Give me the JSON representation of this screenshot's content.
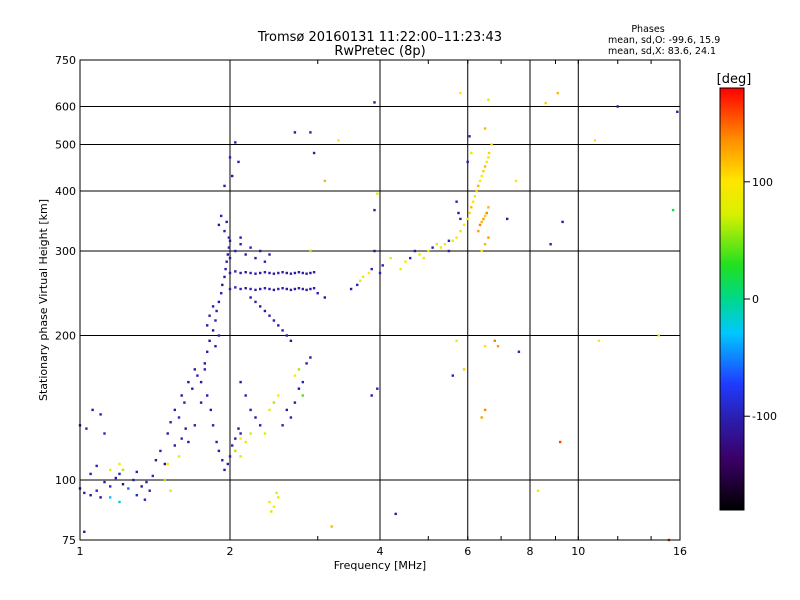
{
  "chart_data": {
    "type": "scatter",
    "title": "Tromsø 20160131 11:22:00–11:23:43",
    "subtitle": "RwPretec (8p)",
    "xlabel": "Frequency [MHz]",
    "ylabel": "Stationary phase Virtual Height [km]",
    "x_scale": "log",
    "y_scale": "log",
    "xlim": [
      1,
      16
    ],
    "ylim": [
      75,
      750
    ],
    "x_ticks": [
      1,
      2,
      4,
      6,
      8,
      10,
      16
    ],
    "x_tick_labels": [
      "1",
      "2",
      "4",
      "6",
      "8",
      "10",
      "16"
    ],
    "y_ticks": [
      75,
      100,
      200,
      300,
      400,
      500,
      600,
      750
    ],
    "y_tick_labels": [
      "75",
      "100",
      "200",
      "300",
      "400",
      "500",
      "600",
      "750"
    ],
    "grid": true,
    "colorbar": {
      "label": "[deg]",
      "range": [
        -180,
        180
      ],
      "tick_values": [
        100,
        0,
        -100
      ],
      "tick_labels": [
        "100",
        "0",
        "-100"
      ]
    },
    "stats": {
      "header": "Phases",
      "line1": "mean, sd,O: -99.6, 15.9",
      "line2": "mean, sd,X:  83.6, 24.1"
    },
    "colors": {
      "grid": "#000000",
      "o_mode_points": "#1f1fe6",
      "x_mode_points": "#e6d21f"
    },
    "points": [
      [
        1.0,
        96,
        -110
      ],
      [
        1.02,
        94,
        -100
      ],
      [
        1.05,
        93,
        -115
      ],
      [
        1.08,
        95,
        -95
      ],
      [
        1.1,
        92,
        -120
      ],
      [
        1.12,
        99,
        -105
      ],
      [
        1.15,
        97,
        -90
      ],
      [
        1.18,
        101,
        -110
      ],
      [
        1.2,
        103,
        -100
      ],
      [
        1.22,
        98,
        -120
      ],
      [
        1.25,
        96,
        -60
      ],
      [
        1.28,
        100,
        -110
      ],
      [
        1.3,
        104,
        -100
      ],
      [
        1.33,
        97,
        -115
      ],
      [
        1.36,
        99,
        -105
      ],
      [
        1.38,
        95,
        -100
      ],
      [
        1.4,
        102,
        -90
      ],
      [
        1.42,
        110,
        -110
      ],
      [
        1.45,
        115,
        -100
      ],
      [
        1.48,
        108,
        -120
      ],
      [
        1.0,
        130,
        -105
      ],
      [
        1.03,
        128,
        -100
      ],
      [
        1.06,
        140,
        -110
      ],
      [
        1.1,
        137,
        -100
      ],
      [
        1.12,
        125,
        -95
      ],
      [
        1.05,
        103,
        -110
      ],
      [
        1.08,
        107,
        -100
      ],
      [
        1.15,
        105,
        80
      ],
      [
        1.2,
        108,
        90
      ],
      [
        1.22,
        105,
        60
      ],
      [
        1.15,
        92,
        -30
      ],
      [
        1.2,
        90,
        -20
      ],
      [
        1.02,
        78,
        -110
      ],
      [
        1.3,
        93,
        -90
      ],
      [
        1.35,
        91,
        -100
      ],
      [
        1.5,
        125,
        -110
      ],
      [
        1.52,
        132,
        -100
      ],
      [
        1.55,
        140,
        -105
      ],
      [
        1.58,
        135,
        -95
      ],
      [
        1.6,
        150,
        -110
      ],
      [
        1.62,
        145,
        -100
      ],
      [
        1.65,
        160,
        -115
      ],
      [
        1.68,
        155,
        -105
      ],
      [
        1.7,
        170,
        -110
      ],
      [
        1.72,
        165,
        -100
      ],
      [
        1.55,
        118,
        -105
      ],
      [
        1.6,
        122,
        -95
      ],
      [
        1.63,
        128,
        -110
      ],
      [
        1.5,
        108,
        100
      ],
      [
        1.58,
        112,
        90
      ],
      [
        1.52,
        95,
        80
      ],
      [
        1.48,
        100,
        60
      ],
      [
        1.65,
        120,
        -110
      ],
      [
        1.7,
        130,
        -100
      ],
      [
        1.75,
        145,
        -105
      ],
      [
        1.78,
        175,
        -110
      ],
      [
        1.8,
        185,
        -100
      ],
      [
        1.82,
        195,
        -115
      ],
      [
        1.85,
        205,
        -110
      ],
      [
        1.87,
        215,
        -100
      ],
      [
        1.88,
        225,
        -105
      ],
      [
        1.9,
        235,
        -110
      ],
      [
        1.92,
        245,
        -100
      ],
      [
        1.93,
        255,
        -115
      ],
      [
        1.95,
        265,
        -110
      ],
      [
        1.96,
        275,
        -100
      ],
      [
        1.97,
        285,
        -105
      ],
      [
        1.98,
        295,
        -110
      ],
      [
        1.99,
        305,
        -100
      ],
      [
        2.0,
        315,
        -115
      ],
      [
        1.9,
        340,
        -110
      ],
      [
        1.92,
        355,
        -100
      ],
      [
        1.95,
        330,
        -105
      ],
      [
        1.97,
        345,
        -110
      ],
      [
        1.99,
        320,
        -100
      ],
      [
        1.8,
        210,
        -110
      ],
      [
        1.82,
        220,
        -100
      ],
      [
        1.85,
        230,
        -105
      ],
      [
        1.87,
        190,
        -110
      ],
      [
        1.9,
        200,
        -100
      ],
      [
        1.75,
        160,
        -110
      ],
      [
        1.78,
        170,
        -100
      ],
      [
        1.8,
        150,
        -105
      ],
      [
        1.83,
        140,
        -110
      ],
      [
        1.85,
        130,
        -100
      ],
      [
        1.88,
        120,
        -105
      ],
      [
        1.9,
        115,
        -110
      ],
      [
        1.93,
        110,
        -100
      ],
      [
        1.95,
        105,
        -115
      ],
      [
        1.98,
        108,
        -105
      ],
      [
        2.0,
        112,
        -110
      ],
      [
        2.02,
        118,
        -100
      ],
      [
        2.05,
        122,
        -105
      ],
      [
        2.08,
        128,
        -110
      ],
      [
        2.1,
        125,
        -100
      ],
      [
        1.95,
        410,
        -110
      ],
      [
        2.0,
        470,
        -100
      ],
      [
        2.05,
        505,
        -105
      ],
      [
        2.02,
        430,
        -110
      ],
      [
        2.08,
        460,
        -100
      ],
      [
        2.0,
        250,
        -110
      ],
      [
        2.05,
        252,
        -100
      ],
      [
        2.1,
        250,
        -105
      ],
      [
        2.15,
        251,
        -110
      ],
      [
        2.2,
        250,
        -100
      ],
      [
        2.25,
        249,
        -105
      ],
      [
        2.3,
        250,
        -110
      ],
      [
        2.35,
        251,
        -100
      ],
      [
        2.4,
        250,
        -105
      ],
      [
        2.45,
        249,
        -110
      ],
      [
        2.5,
        250,
        -100
      ],
      [
        2.55,
        251,
        -105
      ],
      [
        2.6,
        250,
        -110
      ],
      [
        2.65,
        249,
        -100
      ],
      [
        2.7,
        250,
        -105
      ],
      [
        2.75,
        251,
        -110
      ],
      [
        2.8,
        250,
        -100
      ],
      [
        2.85,
        249,
        -105
      ],
      [
        2.9,
        250,
        -110
      ],
      [
        2.95,
        251,
        -100
      ],
      [
        2.0,
        270,
        -110
      ],
      [
        2.05,
        272,
        -100
      ],
      [
        2.1,
        270,
        -105
      ],
      [
        2.15,
        271,
        -110
      ],
      [
        2.2,
        270,
        -100
      ],
      [
        2.25,
        269,
        -105
      ],
      [
        2.3,
        270,
        -110
      ],
      [
        2.35,
        271,
        -100
      ],
      [
        2.4,
        270,
        -105
      ],
      [
        2.45,
        269,
        -110
      ],
      [
        2.5,
        270,
        -100
      ],
      [
        2.55,
        271,
        -105
      ],
      [
        2.6,
        270,
        -110
      ],
      [
        2.65,
        269,
        -100
      ],
      [
        2.7,
        270,
        -105
      ],
      [
        2.75,
        271,
        -110
      ],
      [
        2.8,
        270,
        -100
      ],
      [
        2.85,
        269,
        -105
      ],
      [
        2.9,
        270,
        -110
      ],
      [
        2.95,
        271,
        -100
      ],
      [
        2.0,
        290,
        -110
      ],
      [
        2.05,
        300,
        -100
      ],
      [
        2.1,
        310,
        -105
      ],
      [
        2.15,
        295,
        -110
      ],
      [
        2.2,
        305,
        -100
      ],
      [
        2.25,
        290,
        -105
      ],
      [
        2.3,
        300,
        -110
      ],
      [
        2.35,
        285,
        -100
      ],
      [
        2.4,
        295,
        -105
      ],
      [
        2.1,
        320,
        -110
      ],
      [
        2.2,
        240,
        -110
      ],
      [
        2.25,
        235,
        -100
      ],
      [
        2.3,
        230,
        -105
      ],
      [
        2.35,
        225,
        -110
      ],
      [
        2.4,
        220,
        -100
      ],
      [
        2.45,
        215,
        -105
      ],
      [
        2.5,
        210,
        -110
      ],
      [
        2.55,
        205,
        -100
      ],
      [
        2.6,
        200,
        -105
      ],
      [
        2.65,
        195,
        -110
      ],
      [
        2.1,
        160,
        -110
      ],
      [
        2.15,
        150,
        -100
      ],
      [
        2.2,
        140,
        -105
      ],
      [
        2.25,
        135,
        -110
      ],
      [
        2.3,
        130,
        -100
      ],
      [
        2.35,
        125,
        80
      ],
      [
        2.4,
        140,
        90
      ],
      [
        2.45,
        145,
        60
      ],
      [
        2.5,
        150,
        100
      ],
      [
        2.55,
        130,
        -100
      ],
      [
        2.6,
        140,
        -110
      ],
      [
        2.65,
        135,
        -100
      ],
      [
        2.7,
        145,
        -105
      ],
      [
        2.75,
        155,
        -110
      ],
      [
        2.8,
        160,
        -100
      ],
      [
        2.1,
        122,
        100
      ],
      [
        2.15,
        120,
        90
      ],
      [
        2.2,
        125,
        70
      ],
      [
        2.05,
        115,
        60
      ],
      [
        2.1,
        112,
        80
      ],
      [
        2.4,
        90,
        90
      ],
      [
        2.45,
        88,
        100
      ],
      [
        2.5,
        92,
        80
      ],
      [
        2.42,
        86,
        70
      ],
      [
        2.48,
        94,
        90
      ],
      [
        2.7,
        165,
        100
      ],
      [
        2.75,
        170,
        60
      ],
      [
        2.8,
        150,
        40
      ],
      [
        2.85,
        175,
        -100
      ],
      [
        2.9,
        180,
        -110
      ],
      [
        2.7,
        530,
        -110
      ],
      [
        2.9,
        530,
        -100
      ],
      [
        2.95,
        480,
        -105
      ],
      [
        3.1,
        240,
        -110
      ],
      [
        3.0,
        245,
        -100
      ],
      [
        2.9,
        300,
        60
      ],
      [
        3.1,
        420,
        120
      ],
      [
        3.3,
        510,
        100
      ],
      [
        3.2,
        80,
        120
      ],
      [
        3.5,
        250,
        -110
      ],
      [
        3.6,
        255,
        -100
      ],
      [
        3.65,
        260,
        80
      ],
      [
        3.7,
        265,
        90
      ],
      [
        3.8,
        270,
        100
      ],
      [
        3.85,
        275,
        -100
      ],
      [
        3.9,
        300,
        -110
      ],
      [
        3.9,
        365,
        -100
      ],
      [
        3.95,
        395,
        80
      ],
      [
        3.9,
        612,
        -110
      ],
      [
        3.85,
        150,
        -110
      ],
      [
        3.95,
        155,
        -100
      ],
      [
        4.3,
        85,
        -110
      ],
      [
        4.0,
        270,
        -100
      ],
      [
        4.05,
        280,
        -105
      ],
      [
        4.2,
        290,
        80
      ],
      [
        4.4,
        275,
        90
      ],
      [
        4.5,
        285,
        100
      ],
      [
        4.6,
        290,
        -100
      ],
      [
        4.7,
        300,
        -110
      ],
      [
        4.8,
        295,
        80
      ],
      [
        4.9,
        290,
        90
      ],
      [
        5.0,
        300,
        100
      ],
      [
        5.1,
        305,
        -100
      ],
      [
        5.2,
        310,
        80
      ],
      [
        5.3,
        305,
        90
      ],
      [
        5.4,
        310,
        100
      ],
      [
        5.5,
        300,
        -100
      ],
      [
        5.6,
        315,
        90
      ],
      [
        5.7,
        320,
        100
      ],
      [
        5.8,
        330,
        80
      ],
      [
        5.9,
        340,
        90
      ],
      [
        6.0,
        350,
        100
      ],
      [
        6.05,
        360,
        110
      ],
      [
        6.1,
        370,
        120
      ],
      [
        6.15,
        380,
        100
      ],
      [
        6.2,
        390,
        90
      ],
      [
        6.25,
        400,
        110
      ],
      [
        6.3,
        410,
        120
      ],
      [
        6.35,
        420,
        100
      ],
      [
        6.4,
        430,
        90
      ],
      [
        6.45,
        440,
        110
      ],
      [
        6.5,
        450,
        120
      ],
      [
        6.55,
        460,
        100
      ],
      [
        6.6,
        470,
        90
      ],
      [
        6.62,
        480,
        110
      ],
      [
        6.3,
        330,
        130
      ],
      [
        6.35,
        340,
        140
      ],
      [
        6.4,
        345,
        120
      ],
      [
        6.45,
        350,
        130
      ],
      [
        6.5,
        355,
        110
      ],
      [
        6.55,
        360,
        140
      ],
      [
        6.6,
        370,
        120
      ],
      [
        6.4,
        300,
        100
      ],
      [
        6.5,
        310,
        120
      ],
      [
        6.6,
        320,
        130
      ],
      [
        6.0,
        460,
        -110
      ],
      [
        6.05,
        520,
        -100
      ],
      [
        6.1,
        480,
        80
      ],
      [
        5.8,
        640,
        100
      ],
      [
        6.6,
        620,
        80
      ],
      [
        6.5,
        540,
        120
      ],
      [
        6.7,
        500,
        100
      ],
      [
        5.7,
        380,
        -100
      ],
      [
        5.75,
        360,
        -110
      ],
      [
        5.8,
        350,
        -100
      ],
      [
        5.7,
        195,
        100
      ],
      [
        5.9,
        170,
        110
      ],
      [
        5.6,
        165,
        -100
      ],
      [
        6.5,
        140,
        140
      ],
      [
        6.4,
        135,
        130
      ],
      [
        6.8,
        195,
        140
      ],
      [
        6.9,
        190,
        130
      ],
      [
        6.5,
        190,
        100
      ],
      [
        5.5,
        315,
        -100
      ],
      [
        7.2,
        350,
        -110
      ],
      [
        8.6,
        610,
        110
      ],
      [
        8.8,
        310,
        -100
      ],
      [
        9.3,
        345,
        -110
      ],
      [
        9.2,
        120,
        160
      ],
      [
        9.1,
        640,
        120
      ],
      [
        10.8,
        510,
        100
      ],
      [
        11.0,
        195,
        100
      ],
      [
        12.0,
        600,
        -110
      ],
      [
        15.8,
        585,
        -110
      ],
      [
        15.5,
        365,
        20
      ],
      [
        15.2,
        75,
        170
      ],
      [
        14.5,
        200,
        90
      ],
      [
        8.3,
        95,
        100
      ],
      [
        7.6,
        185,
        -100
      ],
      [
        7.5,
        420,
        100
      ]
    ]
  }
}
